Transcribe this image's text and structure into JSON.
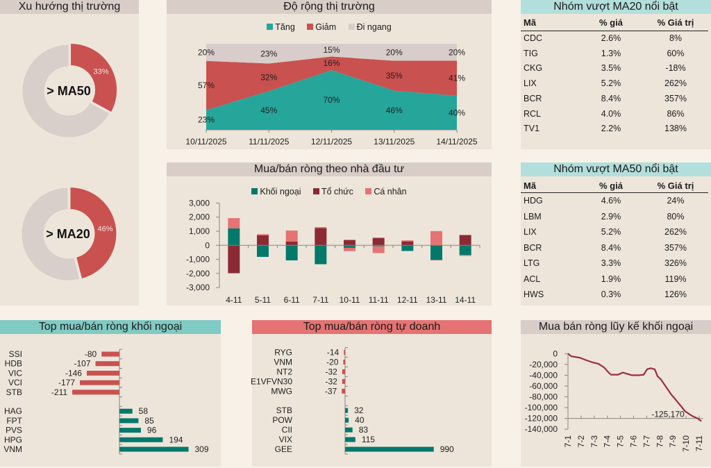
{
  "tables": {
    "ma20": {
      "title": "Nhóm vượt MA20 nổi bật",
      "columns": [
        "Mã",
        "% giá",
        "% Giá trị"
      ],
      "rows": [
        [
          "CDC",
          "2.6%",
          "8%"
        ],
        [
          "TIG",
          "1.3%",
          "60%"
        ],
        [
          "CKG",
          "3.5%",
          "-18%"
        ],
        [
          "LIX",
          "5.2%",
          "262%"
        ],
        [
          "BCR",
          "8.4%",
          "357%"
        ],
        [
          "RCL",
          "4.0%",
          "86%"
        ],
        [
          "TV1",
          "2.2%",
          "138%"
        ]
      ]
    },
    "ma50": {
      "title": "Nhóm vượt MA50 nổi bật",
      "columns": [
        "Mã",
        "% giá",
        "% Giá trị"
      ],
      "rows": [
        [
          "HDG",
          "4.6%",
          "24%"
        ],
        [
          "LBM",
          "2.9%",
          "80%"
        ],
        [
          "LIX",
          "5.2%",
          "262%"
        ],
        [
          "BCR",
          "8.4%",
          "357%"
        ],
        [
          "LTG",
          "3.3%",
          "326%"
        ],
        [
          "ACL",
          "1.9%",
          "119%"
        ],
        [
          "HWS",
          "0.3%",
          "126%"
        ]
      ]
    }
  },
  "chart_data": [
    {
      "type": "pie",
      "subtype": "donut",
      "title": "Xu hướng thị trường",
      "center_label": "> MA50",
      "slices": [
        {
          "value": 33,
          "label": "33%",
          "color": "#c9514f"
        },
        {
          "value": 67,
          "label": "",
          "color": "#d8ceca"
        }
      ]
    },
    {
      "type": "pie",
      "subtype": "donut",
      "title": "Xu hướng thị trường",
      "center_label": "> MA20",
      "slices": [
        {
          "value": 46,
          "label": "46%",
          "color": "#c9514f"
        },
        {
          "value": 54,
          "label": "",
          "color": "#d8ceca"
        }
      ]
    },
    {
      "type": "area",
      "stacked": "percent",
      "title": "Độ rộng thị trường",
      "categories": [
        "10/11/2025",
        "11/11/2025",
        "12/11/2025",
        "13/11/2025",
        "14/11/2025"
      ],
      "series": [
        {
          "name": "Tăng",
          "values": [
            23,
            45,
            70,
            46,
            40
          ],
          "labels": [
            "23%",
            "45%",
            "70%",
            "46%",
            "40%"
          ],
          "color": "#26a69a"
        },
        {
          "name": "Giảm",
          "values": [
            57,
            32,
            16,
            35,
            41
          ],
          "labels": [
            "57%",
            "32%",
            "16%",
            "35%",
            "41%"
          ],
          "color": "#c9514f"
        },
        {
          "name": "Đi ngang",
          "values": [
            20,
            23,
            15,
            20,
            20
          ],
          "labels": [
            "20%",
            "23%",
            "15%",
            "20%",
            "20%"
          ],
          "color": "#d8cdca"
        }
      ],
      "ylim": [
        0,
        100
      ],
      "legend": "top"
    },
    {
      "type": "bar",
      "stacked": true,
      "title": "Mua/bán ròng theo nhà đầu tư",
      "categories": [
        "4-11",
        "5-11",
        "6-11",
        "7-11",
        "10-11",
        "11-11",
        "12-11",
        "13-11",
        "14-11"
      ],
      "series": [
        {
          "name": "Khối ngoại",
          "values": [
            1200,
            -820,
            -1070,
            -1340,
            -180,
            -70,
            -400,
            -990,
            -690
          ],
          "color": "#00796b"
        },
        {
          "name": "Tổ chức",
          "values": [
            -1980,
            710,
            260,
            1220,
            380,
            530,
            280,
            -60,
            730
          ],
          "color": "#8b2a35"
        },
        {
          "name": "Cá nhân",
          "values": [
            730,
            80,
            790,
            70,
            -230,
            -480,
            70,
            1010,
            -60
          ],
          "color": "#e57373"
        }
      ],
      "ylim": [
        -3000,
        3000
      ],
      "yticks": [
        3000,
        2000,
        1000,
        0,
        -1000,
        -2000,
        -3000
      ],
      "ytick_labels": [
        "3,000",
        "2,000",
        "1,000",
        "0",
        "-1,000",
        "-2,000",
        "-3,000"
      ],
      "legend": "top"
    },
    {
      "type": "bar",
      "orientation": "horizontal",
      "title": "Top mua/bán ròng khối ngoại",
      "categories": [
        "SSI",
        "HDB",
        "VIC",
        "VCI",
        "STB",
        "",
        "HAG",
        "FPT",
        "PVS",
        "HPG",
        "VNM"
      ],
      "values": [
        -80,
        -107,
        -146,
        -177,
        -211,
        null,
        58,
        85,
        96,
        194,
        309
      ],
      "colors": {
        "negative": "#c9514f",
        "positive": "#00796b"
      }
    },
    {
      "type": "bar",
      "orientation": "horizontal",
      "title": "Top mua/bán ròng tự doanh",
      "categories": [
        "RYG",
        "VNM",
        "NT2",
        "E1VFVN30",
        "MWG",
        "",
        "STB",
        "POW",
        "CII",
        "VIX",
        "GEE"
      ],
      "values": [
        -14,
        -20,
        -32,
        -32,
        -37,
        null,
        32,
        40,
        83,
        115,
        990
      ],
      "colors": {
        "negative": "#c9514f",
        "positive": "#00796b"
      }
    },
    {
      "type": "line",
      "title": "Mua bán ròng lũy kế khối ngoại",
      "x_tick_labels": [
        "7-1",
        "7-2",
        "7-3",
        "7-4",
        "7-5",
        "7-6",
        "7-7",
        "7-8",
        "7-9",
        "7-10",
        "7-11"
      ],
      "points": [
        [
          0,
          0
        ],
        [
          0.26,
          -5000
        ],
        [
          0.9,
          -7500
        ],
        [
          1.32,
          -11500
        ],
        [
          1.85,
          -16000
        ],
        [
          2.33,
          -19000
        ],
        [
          2.75,
          -25500
        ],
        [
          3.02,
          -33000
        ],
        [
          3.28,
          -39000
        ],
        [
          3.81,
          -39000
        ],
        [
          4.18,
          -35000
        ],
        [
          4.87,
          -40000
        ],
        [
          5.4,
          -40000
        ],
        [
          5.77,
          -39000
        ],
        [
          6.03,
          -29000
        ],
        [
          6.3,
          -27000
        ],
        [
          6.61,
          -29000
        ],
        [
          6.83,
          -42000
        ],
        [
          7.09,
          -48000
        ],
        [
          7.51,
          -63000
        ],
        [
          7.88,
          -76000
        ],
        [
          8.2,
          -85000
        ],
        [
          8.57,
          -96000
        ],
        [
          8.94,
          -107000
        ],
        [
          9.47,
          -115500
        ],
        [
          9.89,
          -120000
        ],
        [
          10.16,
          -125170
        ]
      ],
      "ylim": [
        -140000,
        0
      ],
      "yticks": [
        0,
        -20000,
        -40000,
        -60000,
        -80000,
        -100000,
        -120000,
        -140000
      ],
      "ytick_labels": [
        "0",
        "-20,000",
        "-40,000",
        "-60,000",
        "-80,000",
        "-100,000",
        "-120,000",
        "-140,000"
      ],
      "annotation": {
        "x": 10.16,
        "y": -125170,
        "text": "-125,170"
      },
      "color": "#9b2d3b"
    }
  ]
}
